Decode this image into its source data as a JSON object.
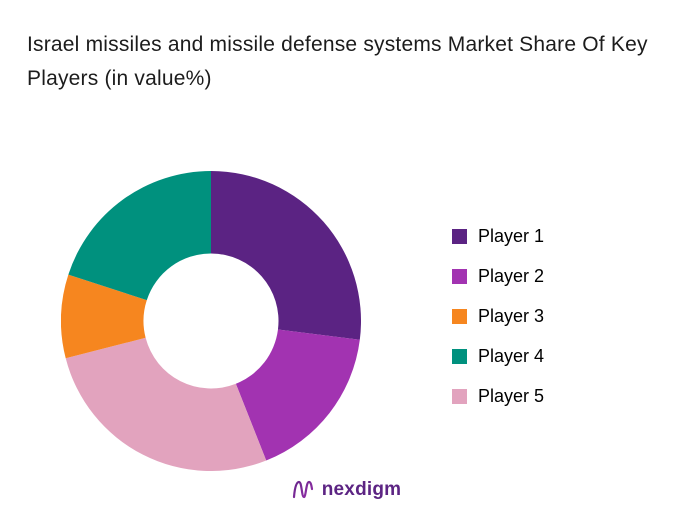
{
  "title": "Israel missiles and missile defense systems Market Share Of Key Players (in value%)",
  "logo": {
    "text": "nexdigm"
  },
  "chart_data": {
    "type": "pie",
    "subtype": "donut",
    "title": "Israel missiles and missile defense systems Market Share Of Key Players (in value%)",
    "unit": "value %",
    "legend_position": "right",
    "start_angle_deg": 0,
    "direction": "clockwise",
    "inner_radius_ratio": 0.45,
    "segments_clockwise_from_top": [
      "Player 1",
      "Player 2",
      "Player 5",
      "Player 3",
      "Player 4"
    ],
    "series": [
      {
        "name": "Player 1",
        "value": 27,
        "color": "#5b2383"
      },
      {
        "name": "Player 2",
        "value": 17,
        "color": "#a233b1"
      },
      {
        "name": "Player 3",
        "value": 9,
        "color": "#f6861f"
      },
      {
        "name": "Player 4",
        "value": 20,
        "color": "#00917e"
      },
      {
        "name": "Player 5",
        "value": 27,
        "color": "#e2a3be"
      }
    ]
  }
}
